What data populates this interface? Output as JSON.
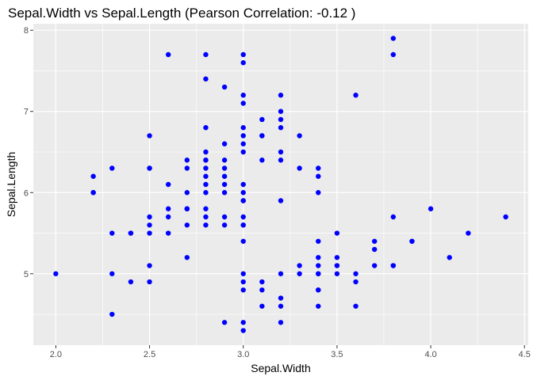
{
  "chart_data": {
    "type": "scatter",
    "title": "Sepal.Width  vs  Sepal.Length (Pearson Correlation:  -0.12 )",
    "xlabel": "Sepal.Width",
    "ylabel": "Sepal.Length",
    "xlim": [
      1.88,
      4.52
    ],
    "ylim": [
      4.12,
      8.08
    ],
    "x_ticks": [
      2.0,
      2.5,
      3.0,
      3.5,
      4.0,
      4.5
    ],
    "x_tick_labels": [
      "2.0",
      "2.5",
      "3.0",
      "3.5",
      "4.0",
      "4.5"
    ],
    "y_ticks": [
      5,
      6,
      7,
      8
    ],
    "y_tick_labels": [
      "5",
      "6",
      "7",
      "8"
    ],
    "grid": true,
    "point_color": "#0000ff",
    "panel_color": "#ebebeb",
    "grid_color": "#ffffff",
    "points": [
      [
        2.0,
        5.0
      ],
      [
        2.2,
        6.0
      ],
      [
        2.2,
        6.2
      ],
      [
        2.2,
        6.0
      ],
      [
        2.3,
        4.5
      ],
      [
        2.3,
        5.0
      ],
      [
        2.3,
        5.5
      ],
      [
        2.3,
        6.3
      ],
      [
        2.4,
        4.9
      ],
      [
        2.4,
        5.5
      ],
      [
        2.4,
        5.5
      ],
      [
        2.5,
        4.9
      ],
      [
        2.5,
        5.1
      ],
      [
        2.5,
        5.5
      ],
      [
        2.5,
        5.6
      ],
      [
        2.5,
        5.7
      ],
      [
        2.5,
        6.3
      ],
      [
        2.5,
        6.7
      ],
      [
        2.5,
        6.3
      ],
      [
        2.6,
        5.5
      ],
      [
        2.6,
        5.7
      ],
      [
        2.6,
        5.8
      ],
      [
        2.6,
        6.1
      ],
      [
        2.6,
        7.7
      ],
      [
        2.7,
        5.2
      ],
      [
        2.7,
        5.6
      ],
      [
        2.7,
        5.8
      ],
      [
        2.7,
        5.8
      ],
      [
        2.7,
        6.0
      ],
      [
        2.7,
        6.3
      ],
      [
        2.7,
        6.4
      ],
      [
        2.7,
        5.8
      ],
      [
        2.8,
        5.6
      ],
      [
        2.8,
        5.7
      ],
      [
        2.8,
        5.8
      ],
      [
        2.8,
        6.1
      ],
      [
        2.8,
        6.2
      ],
      [
        2.8,
        6.3
      ],
      [
        2.8,
        6.4
      ],
      [
        2.8,
        6.5
      ],
      [
        2.8,
        6.8
      ],
      [
        2.8,
        7.4
      ],
      [
        2.8,
        7.7
      ],
      [
        2.8,
        6.0
      ],
      [
        2.8,
        6.4
      ],
      [
        2.9,
        4.4
      ],
      [
        2.9,
        5.6
      ],
      [
        2.9,
        5.7
      ],
      [
        2.9,
        6.0
      ],
      [
        2.9,
        6.1
      ],
      [
        2.9,
        6.2
      ],
      [
        2.9,
        6.3
      ],
      [
        2.9,
        6.4
      ],
      [
        2.9,
        6.6
      ],
      [
        2.9,
        7.3
      ],
      [
        3.0,
        4.3
      ],
      [
        3.0,
        4.4
      ],
      [
        3.0,
        4.8
      ],
      [
        3.0,
        4.9
      ],
      [
        3.0,
        5.0
      ],
      [
        3.0,
        5.4
      ],
      [
        3.0,
        5.6
      ],
      [
        3.0,
        5.7
      ],
      [
        3.0,
        5.9
      ],
      [
        3.0,
        6.0
      ],
      [
        3.0,
        6.1
      ],
      [
        3.0,
        6.5
      ],
      [
        3.0,
        6.6
      ],
      [
        3.0,
        6.7
      ],
      [
        3.0,
        6.8
      ],
      [
        3.0,
        7.1
      ],
      [
        3.0,
        7.2
      ],
      [
        3.0,
        7.6
      ],
      [
        3.0,
        7.7
      ],
      [
        3.0,
        5.9
      ],
      [
        3.0,
        5.6
      ],
      [
        3.1,
        4.6
      ],
      [
        3.1,
        4.8
      ],
      [
        3.1,
        4.9
      ],
      [
        3.1,
        6.4
      ],
      [
        3.1,
        6.7
      ],
      [
        3.1,
        6.9
      ],
      [
        3.1,
        6.7
      ],
      [
        3.2,
        4.4
      ],
      [
        3.2,
        4.6
      ],
      [
        3.2,
        4.7
      ],
      [
        3.2,
        5.0
      ],
      [
        3.2,
        5.9
      ],
      [
        3.2,
        6.4
      ],
      [
        3.2,
        6.5
      ],
      [
        3.2,
        6.8
      ],
      [
        3.2,
        6.9
      ],
      [
        3.2,
        7.0
      ],
      [
        3.2,
        7.2
      ],
      [
        3.3,
        5.0
      ],
      [
        3.3,
        5.1
      ],
      [
        3.3,
        6.3
      ],
      [
        3.3,
        6.7
      ],
      [
        3.4,
        4.6
      ],
      [
        3.4,
        4.8
      ],
      [
        3.4,
        5.0
      ],
      [
        3.4,
        5.1
      ],
      [
        3.4,
        5.2
      ],
      [
        3.4,
        5.4
      ],
      [
        3.4,
        6.0
      ],
      [
        3.4,
        6.2
      ],
      [
        3.4,
        6.3
      ],
      [
        3.4,
        4.8
      ],
      [
        3.4,
        5.0
      ],
      [
        3.5,
        5.0
      ],
      [
        3.5,
        5.1
      ],
      [
        3.5,
        5.2
      ],
      [
        3.5,
        5.5
      ],
      [
        3.5,
        5.1
      ],
      [
        3.6,
        4.6
      ],
      [
        3.6,
        4.9
      ],
      [
        3.6,
        5.0
      ],
      [
        3.6,
        7.2
      ],
      [
        3.7,
        5.1
      ],
      [
        3.7,
        5.3
      ],
      [
        3.7,
        5.4
      ],
      [
        3.8,
        5.1
      ],
      [
        3.8,
        5.7
      ],
      [
        3.8,
        7.7
      ],
      [
        3.8,
        7.9
      ],
      [
        3.8,
        5.1
      ],
      [
        3.9,
        5.4
      ],
      [
        3.9,
        5.4
      ],
      [
        4.0,
        5.8
      ],
      [
        4.1,
        5.2
      ],
      [
        4.2,
        5.5
      ],
      [
        4.4,
        5.7
      ]
    ]
  }
}
